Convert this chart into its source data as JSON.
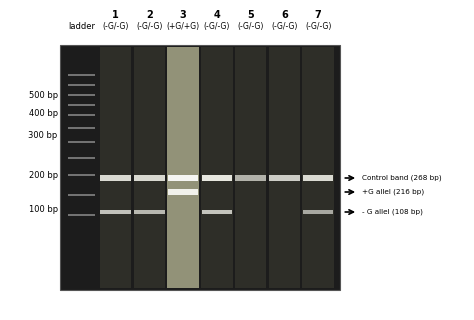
{
  "fig_width": 4.74,
  "fig_height": 3.2,
  "dpi": 100,
  "bg_color": "#ffffff",
  "gel_bg": "#1c1c1c",
  "lane_labels": [
    "1",
    "2",
    "3",
    "4",
    "5",
    "6",
    "7"
  ],
  "lane_subtitles": [
    "(-G/-G)",
    "(-G/-G)",
    "(+G/+G)",
    "(-G/-G)",
    "(-G/-G)",
    "(-G/-G)",
    "(-G/-G)"
  ],
  "bp_labels": [
    "500 bp",
    "400 bp",
    "300 bp",
    "200 bp",
    "100 bp"
  ],
  "annotations": [
    "Control band (268 bp)",
    "+G allel (216 bp)",
    "- G allel (108 bp)"
  ]
}
